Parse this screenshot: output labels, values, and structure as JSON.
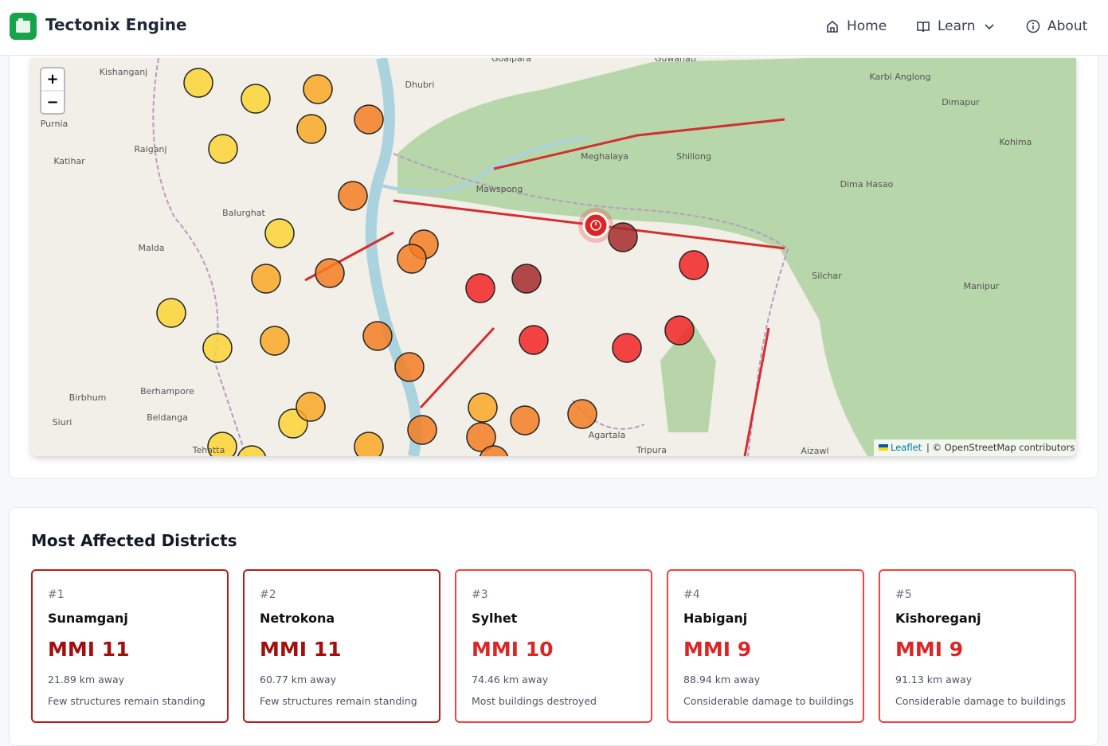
{
  "header": {
    "title": "Tectonix Engine",
    "nav": [
      "Home",
      "Learn",
      "About"
    ]
  },
  "map": {
    "zoom": [
      "+",
      "−"
    ],
    "attribution": {
      "link": "Leaflet",
      "text": "| © OpenStreetMap contributors"
    },
    "labels": [
      "Kishanganj",
      "Goalpara",
      "Guwahati",
      "Karbi Anglong",
      "Dimapur",
      "Purnia",
      "Dhubri",
      "Meghalaya",
      "Shillong",
      "Raiganj",
      "Katihar",
      "Mawspong",
      "Dima Hasao",
      "Kohima",
      "Balurghat",
      "Malda",
      "Silchar",
      "Manipur",
      "Berhampore",
      "Birbhum",
      "Beldanga",
      "Siuri",
      "Agartala",
      "Tripura",
      "Aizawl",
      "Tehatta"
    ]
  },
  "districts": {
    "title": "Most Affected Districts",
    "cards": [
      {
        "rank": "#1",
        "name": "Sunamganj",
        "mmi": "MMI 11",
        "distance": "21.89 km away",
        "effect": "Few structures remain standing"
      },
      {
        "rank": "#2",
        "name": "Netrokona",
        "mmi": "MMI 11",
        "distance": "60.77 km away",
        "effect": "Few structures remain standing"
      },
      {
        "rank": "#3",
        "name": "Sylhet",
        "mmi": "MMI 10",
        "distance": "74.46 km away",
        "effect": "Most buildings destroyed"
      },
      {
        "rank": "#4",
        "name": "Habiganj",
        "mmi": "MMI 9",
        "distance": "88.94 km away",
        "effect": "Considerable damage to buildings"
      },
      {
        "rank": "#5",
        "name": "Kishoreganj",
        "mmi": "MMI 9",
        "distance": "91.13 km away",
        "effect": "Considerable damage to buildings"
      }
    ]
  }
}
